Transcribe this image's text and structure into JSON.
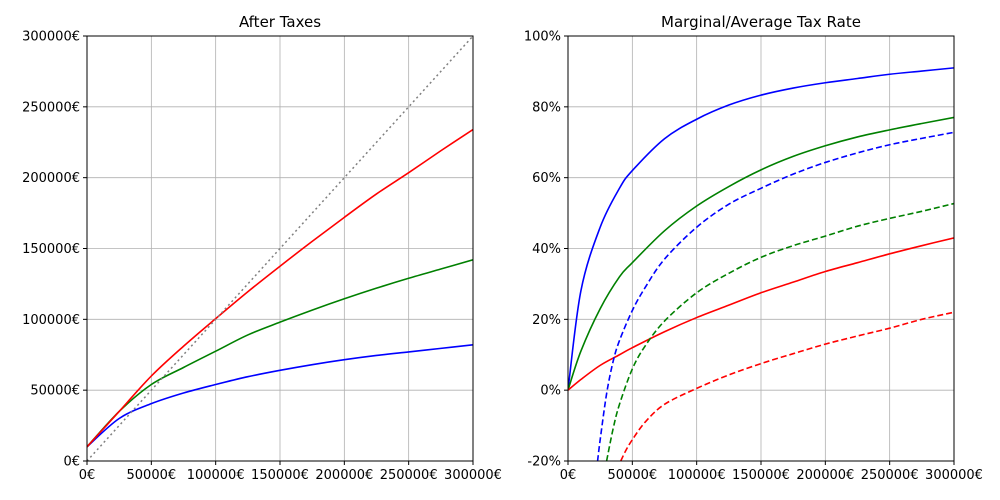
{
  "chart_data": [
    {
      "type": "line",
      "title": "After Taxes",
      "xlabel": "",
      "ylabel": "",
      "xlim": [
        0,
        300000
      ],
      "ylim": [
        0,
        300000
      ],
      "grid": true,
      "x_ticks": [
        "0€",
        "50000€",
        "100000€",
        "150000€",
        "200000€",
        "250000€",
        "300000€"
      ],
      "x_tick_values": [
        0,
        50000,
        100000,
        150000,
        200000,
        250000,
        300000
      ],
      "y_ticks": [
        "0€",
        "50000€",
        "100000€",
        "150000€",
        "200000€",
        "250000€",
        "300000€"
      ],
      "y_tick_values": [
        0,
        50000,
        100000,
        150000,
        200000,
        250000,
        300000
      ],
      "x": [
        0,
        25000,
        50000,
        75000,
        100000,
        125000,
        150000,
        175000,
        200000,
        225000,
        250000,
        275000,
        300000
      ],
      "series": [
        {
          "color": "#0000ff",
          "style": "solid",
          "values": [
            10000,
            30000,
            40500,
            48000,
            54000,
            59500,
            64000,
            68000,
            71500,
            74500,
            77000,
            79500,
            82000
          ]
        },
        {
          "color": "#008000",
          "style": "solid",
          "values": [
            10000,
            35000,
            54000,
            66000,
            77500,
            89000,
            98000,
            106500,
            114500,
            122000,
            129000,
            135500,
            142000
          ]
        },
        {
          "color": "#ff0000",
          "style": "solid",
          "values": [
            10000,
            35000,
            60000,
            81000,
            100500,
            119500,
            137500,
            155000,
            172000,
            188500,
            203500,
            219000,
            234000
          ]
        },
        {
          "color": "#808080",
          "style": "dotted",
          "values": [
            0,
            25000,
            50000,
            75000,
            100000,
            125000,
            150000,
            175000,
            200000,
            225000,
            250000,
            275000,
            300000
          ]
        }
      ]
    },
    {
      "type": "line",
      "title": "Marginal/Average Tax Rate",
      "xlabel": "",
      "ylabel": "",
      "xlim": [
        0,
        300000
      ],
      "ylim": [
        -20,
        100
      ],
      "grid": true,
      "x_ticks": [
        "0€",
        "50000€",
        "100000€",
        "150000€",
        "200000€",
        "250000€",
        "300000€"
      ],
      "x_tick_values": [
        0,
        50000,
        100000,
        150000,
        200000,
        250000,
        300000
      ],
      "y_ticks": [
        "-20%",
        "0%",
        "20%",
        "40%",
        "60%",
        "80%",
        "100%"
      ],
      "y_tick_values": [
        -20,
        0,
        20,
        40,
        60,
        80,
        100
      ],
      "x": [
        0,
        10000,
        25000,
        40000,
        50000,
        75000,
        100000,
        125000,
        150000,
        175000,
        200000,
        225000,
        250000,
        275000,
        300000
      ],
      "series": [
        {
          "color": "#0000ff",
          "style": "solid",
          "values": [
            0,
            28,
            46,
            57,
            62,
            71,
            76.5,
            80.5,
            83.3,
            85.3,
            86.8,
            88,
            89.2,
            90.1,
            91
          ]
        },
        {
          "color": "#008000",
          "style": "solid",
          "values": [
            0,
            11,
            23,
            32,
            36,
            45,
            52,
            57.5,
            62.2,
            66,
            69,
            71.5,
            73.5,
            75.3,
            77
          ]
        },
        {
          "color": "#ff0000",
          "style": "solid",
          "values": [
            0,
            3,
            7,
            10,
            12,
            16.5,
            20.5,
            24,
            27.5,
            30.5,
            33.5,
            36,
            38.5,
            40.8,
            43
          ]
        },
        {
          "color": "#0000ff",
          "style": "dashed",
          "x": [
            23000,
            25000,
            30000,
            35000,
            40000,
            50000,
            60000,
            75000,
            100000,
            125000,
            150000,
            175000,
            200000,
            225000,
            250000,
            275000,
            300000
          ],
          "values": [
            -20,
            -14,
            -1,
            8,
            14,
            22.5,
            29,
            37,
            46,
            52.5,
            57,
            61,
            64.3,
            67,
            69.3,
            71.1,
            72.8
          ]
        },
        {
          "color": "#008000",
          "style": "dashed",
          "x": [
            30000,
            35000,
            40000,
            50000,
            60000,
            75000,
            100000,
            125000,
            150000,
            175000,
            200000,
            225000,
            250000,
            275000,
            300000
          ],
          "values": [
            -20,
            -11,
            -4,
            6,
            12.5,
            19.5,
            27.5,
            33,
            37.5,
            40.8,
            43.5,
            46.3,
            48.5,
            50.5,
            52.7
          ]
        },
        {
          "color": "#ff0000",
          "style": "dashed",
          "x": [
            41000,
            45000,
            50000,
            60000,
            75000,
            100000,
            125000,
            150000,
            175000,
            200000,
            225000,
            250000,
            275000,
            300000
          ],
          "values": [
            -20,
            -17,
            -14,
            -9,
            -4,
            0.5,
            4.3,
            7.5,
            10.3,
            13,
            15.3,
            17.5,
            20,
            22
          ]
        }
      ]
    }
  ]
}
